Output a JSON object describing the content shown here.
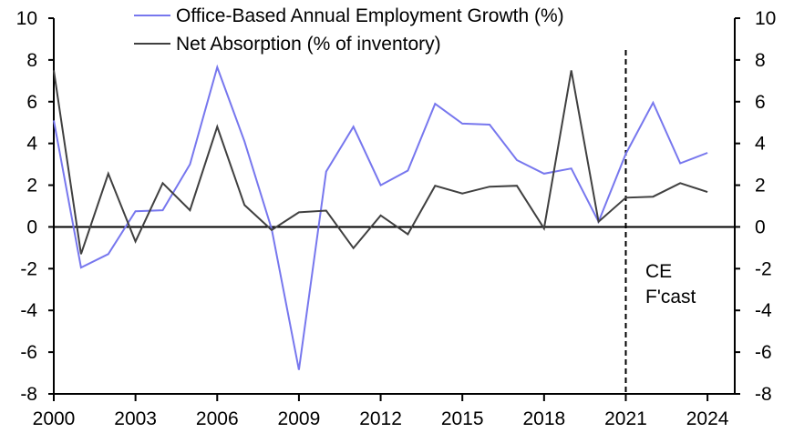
{
  "chart_data": {
    "type": "line",
    "title": "",
    "xlabel": "",
    "ylabel": "",
    "x": [
      2000,
      2001,
      2002,
      2003,
      2004,
      2005,
      2006,
      2007,
      2008,
      2009,
      2010,
      2011,
      2012,
      2013,
      2014,
      2015,
      2016,
      2017,
      2018,
      2019,
      2020,
      2021,
      2022,
      2023,
      2024
    ],
    "xlim": [
      2000,
      2025
    ],
    "ylim": [
      -8,
      10
    ],
    "ylim_right": [
      -8,
      10
    ],
    "x_ticks": [
      "2000",
      "2003",
      "2006",
      "2009",
      "2012",
      "2015",
      "2018",
      "2021",
      "2024"
    ],
    "x_tick_values": [
      2000,
      2003,
      2006,
      2009,
      2012,
      2015,
      2018,
      2021,
      2024
    ],
    "y_ticks": [
      "-8",
      "-6",
      "-4",
      "-2",
      "0",
      "2",
      "4",
      "6",
      "8",
      "10"
    ],
    "y_tick_values": [
      -8,
      -6,
      -4,
      -2,
      0,
      2,
      4,
      6,
      8,
      10
    ],
    "grid": false,
    "legend_position": "top",
    "series": [
      {
        "name": "Office-Based Annual Employment Growth (%)",
        "color": "#7777EE",
        "values": [
          5.1,
          -1.95,
          -1.3,
          0.75,
          0.8,
          3.0,
          7.65,
          4.1,
          -0.1,
          -6.85,
          2.65,
          4.8,
          2.0,
          2.7,
          5.9,
          4.95,
          4.9,
          3.2,
          2.55,
          2.8,
          0.25,
          3.5,
          5.95,
          3.05,
          3.55
        ]
      },
      {
        "name": "Net Absorption (% of inventory)",
        "color": "#404040",
        "values": [
          7.5,
          -1.3,
          2.55,
          -0.7,
          2.1,
          0.8,
          4.8,
          1.05,
          -0.15,
          0.7,
          0.78,
          -1.02,
          0.55,
          -0.35,
          1.97,
          1.6,
          1.93,
          1.97,
          -0.07,
          7.5,
          0.25,
          1.4,
          1.45,
          2.1,
          1.67
        ]
      }
    ],
    "forecast_line": {
      "x": 2021,
      "label_line1": "CE",
      "label_line2": "F'cast"
    }
  }
}
